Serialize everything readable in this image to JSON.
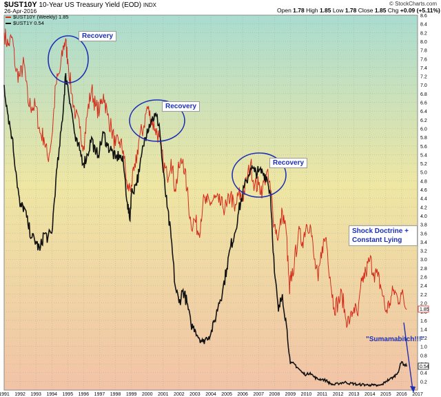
{
  "header": {
    "symbol": "$UST10Y",
    "description": "10-Year US Treasury Yield (EOD)",
    "exchange": "INDX",
    "date": "26-Apr-2016",
    "open_label": "Open",
    "open_value": "1.78",
    "high_label": "High",
    "high_value": "1.85",
    "low_label": "Low",
    "low_value": "1.78",
    "close_label": "Close",
    "close_value": "1.85",
    "chg_label": "Chg",
    "chg_value": "+0.09 (+5.11%)",
    "chg_arrow": "▲",
    "brand": "© StockCharts.com"
  },
  "legend": [
    {
      "text": "$UST10Y (Weekly) 1.85",
      "color": "#d42a1a"
    },
    {
      "text": "$UST1Y 0.54",
      "color": "#111111"
    }
  ],
  "annotations": {
    "recovery_1": "Recovery",
    "recovery_2": "Recovery",
    "recovery_3": "Recovery",
    "shock": "Shock Doctrine + Constant Lying",
    "suma": "\"Sumamabitch!!!\""
  },
  "colors": {
    "ust10y": "#d42a1a",
    "ust1y": "#111111",
    "annotation": "#1c2fb5",
    "bg_top": "#a9dcd0",
    "bg_mid": "#eee6a3",
    "bg_bottom": "#f2c3a6"
  },
  "chart_data": {
    "type": "line",
    "ylim": [
      0,
      8.6
    ],
    "xlim": [
      1991,
      2017
    ],
    "grid": true,
    "y_axis_side": "right",
    "x_tick_labels": [
      "1991",
      "1992",
      "1993",
      "1994",
      "1995",
      "1996",
      "1997",
      "1998",
      "1999",
      "2000",
      "2001",
      "2002",
      "2003",
      "2004",
      "2005",
      "2006",
      "2007",
      "2008",
      "2009",
      "2010",
      "2011",
      "2012",
      "2013",
      "2014",
      "2015",
      "2016",
      "2017"
    ],
    "y_tick_labels": [
      "0.2",
      "0.4",
      "0.6",
      "0.8",
      "1.0",
      "1.2",
      "1.4",
      "1.6",
      "1.8",
      "2.0",
      "2.2",
      "2.4",
      "2.6",
      "2.8",
      "3.0",
      "3.2",
      "3.4",
      "3.6",
      "3.8",
      "4.0",
      "4.2",
      "4.4",
      "4.6",
      "4.8",
      "5.0",
      "5.2",
      "5.4",
      "5.6",
      "5.8",
      "6.0",
      "6.2",
      "6.4",
      "6.6",
      "6.8",
      "7.0",
      "7.2",
      "7.4",
      "7.6",
      "7.8",
      "8.0",
      "8.2",
      "8.4",
      "8.6"
    ],
    "last_value_labels": {
      "ust10y": "1.85",
      "ust1y": "0.54"
    },
    "series": [
      {
        "name": "$UST10Y (Weekly)",
        "x": [
          1991.0,
          1991.25,
          1991.5,
          1991.75,
          1992.0,
          1992.25,
          1992.5,
          1992.75,
          1993.0,
          1993.25,
          1993.5,
          1993.75,
          1994.0,
          1994.25,
          1994.5,
          1994.75,
          1994.85,
          1995.0,
          1995.25,
          1995.5,
          1995.75,
          1996.0,
          1996.25,
          1996.5,
          1996.75,
          1997.0,
          1997.25,
          1997.5,
          1997.75,
          1998.0,
          1998.25,
          1998.5,
          1998.75,
          1999.0,
          1999.25,
          1999.5,
          1999.75,
          2000.0,
          2000.25,
          2000.5,
          2000.75,
          2001.0,
          2001.25,
          2001.5,
          2001.75,
          2002.0,
          2002.25,
          2002.5,
          2002.75,
          2003.0,
          2003.25,
          2003.5,
          2003.75,
          2004.0,
          2004.25,
          2004.5,
          2004.75,
          2005.0,
          2005.25,
          2005.5,
          2005.75,
          2006.0,
          2006.25,
          2006.5,
          2006.75,
          2007.0,
          2007.25,
          2007.5,
          2007.75,
          2008.0,
          2008.25,
          2008.5,
          2008.75,
          2008.95,
          2009.0,
          2009.25,
          2009.5,
          2009.75,
          2010.0,
          2010.25,
          2010.5,
          2010.75,
          2011.0,
          2011.25,
          2011.5,
          2011.75,
          2012.0,
          2012.25,
          2012.5,
          2012.75,
          2013.0,
          2013.25,
          2013.5,
          2013.75,
          2014.0,
          2014.25,
          2014.5,
          2014.75,
          2015.0,
          2015.25,
          2015.5,
          2015.75,
          2016.0,
          2016.32
        ],
        "values": [
          8.2,
          7.9,
          8.1,
          7.3,
          7.2,
          7.5,
          6.6,
          6.5,
          6.5,
          5.9,
          5.8,
          5.3,
          5.8,
          7.0,
          7.3,
          7.9,
          8.0,
          7.6,
          6.8,
          6.3,
          6.0,
          5.6,
          6.4,
          6.9,
          6.5,
          6.4,
          6.8,
          6.3,
          6.0,
          5.6,
          5.7,
          5.5,
          4.6,
          4.7,
          5.1,
          5.8,
          6.0,
          6.5,
          6.2,
          6.0,
          5.8,
          5.2,
          4.9,
          5.3,
          4.6,
          5.1,
          5.3,
          4.6,
          3.8,
          3.9,
          3.6,
          4.3,
          4.3,
          4.3,
          4.4,
          4.3,
          4.2,
          4.2,
          4.5,
          4.1,
          4.5,
          4.4,
          4.8,
          5.2,
          4.7,
          4.7,
          4.6,
          5.0,
          4.6,
          3.8,
          3.5,
          4.1,
          3.6,
          2.2,
          2.5,
          2.9,
          3.6,
          3.4,
          3.8,
          3.8,
          3.0,
          2.5,
          3.3,
          3.5,
          2.6,
          1.9,
          2.0,
          2.2,
          1.6,
          1.6,
          1.9,
          1.7,
          2.5,
          2.7,
          3.0,
          2.7,
          2.6,
          2.3,
          1.8,
          2.0,
          2.3,
          2.1,
          2.2,
          1.85
        ]
      },
      {
        "name": "$UST1Y",
        "x": [
          1991.0,
          1991.25,
          1991.5,
          1991.75,
          1992.0,
          1992.25,
          1992.5,
          1992.75,
          1993.0,
          1993.25,
          1993.5,
          1993.75,
          1994.0,
          1994.25,
          1994.5,
          1994.75,
          1994.85,
          1995.0,
          1995.25,
          1995.5,
          1995.75,
          1996.0,
          1996.25,
          1996.5,
          1996.75,
          1997.0,
          1997.25,
          1997.5,
          1997.75,
          1998.0,
          1998.25,
          1998.5,
          1998.75,
          1998.9,
          1999.0,
          1999.25,
          1999.5,
          1999.75,
          2000.0,
          2000.25,
          2000.5,
          2000.75,
          2001.0,
          2001.25,
          2001.5,
          2001.75,
          2002.0,
          2002.25,
          2002.5,
          2002.75,
          2003.0,
          2003.25,
          2003.5,
          2003.75,
          2004.0,
          2004.25,
          2004.5,
          2004.75,
          2005.0,
          2005.25,
          2005.5,
          2005.75,
          2006.0,
          2006.25,
          2006.5,
          2006.75,
          2007.0,
          2007.25,
          2007.5,
          2007.75,
          2008.0,
          2008.25,
          2008.5,
          2008.75,
          2009.0,
          2009.25,
          2009.5,
          2009.75,
          2010.0,
          2010.25,
          2010.5,
          2010.75,
          2011.0,
          2011.25,
          2011.5,
          2011.75,
          2012.0,
          2012.25,
          2012.5,
          2012.75,
          2013.0,
          2013.25,
          2013.5,
          2013.75,
          2014.0,
          2014.25,
          2014.5,
          2014.75,
          2015.0,
          2015.25,
          2015.5,
          2015.75,
          2016.0,
          2016.32
        ],
        "values": [
          7.0,
          6.3,
          5.8,
          5.0,
          4.2,
          4.2,
          3.8,
          3.5,
          3.4,
          3.2,
          3.6,
          3.5,
          3.6,
          4.8,
          5.6,
          6.6,
          7.2,
          7.0,
          6.4,
          5.7,
          5.5,
          5.2,
          5.4,
          5.8,
          5.4,
          5.5,
          5.9,
          5.6,
          5.5,
          5.3,
          5.4,
          5.2,
          4.3,
          3.9,
          4.5,
          4.7,
          5.0,
          5.6,
          6.0,
          6.2,
          6.3,
          6.1,
          5.0,
          4.2,
          3.5,
          2.4,
          2.0,
          2.3,
          2.0,
          1.5,
          1.4,
          1.2,
          1.1,
          1.2,
          1.3,
          1.6,
          2.0,
          2.3,
          2.8,
          3.3,
          3.6,
          4.1,
          4.5,
          4.8,
          5.1,
          5.0,
          5.0,
          5.0,
          4.9,
          4.5,
          2.7,
          1.8,
          2.2,
          1.5,
          0.6,
          0.6,
          0.5,
          0.4,
          0.35,
          0.4,
          0.3,
          0.25,
          0.25,
          0.22,
          0.15,
          0.12,
          0.15,
          0.17,
          0.18,
          0.15,
          0.15,
          0.12,
          0.13,
          0.12,
          0.12,
          0.11,
          0.1,
          0.12,
          0.2,
          0.25,
          0.3,
          0.4,
          0.65,
          0.54
        ]
      }
    ]
  }
}
